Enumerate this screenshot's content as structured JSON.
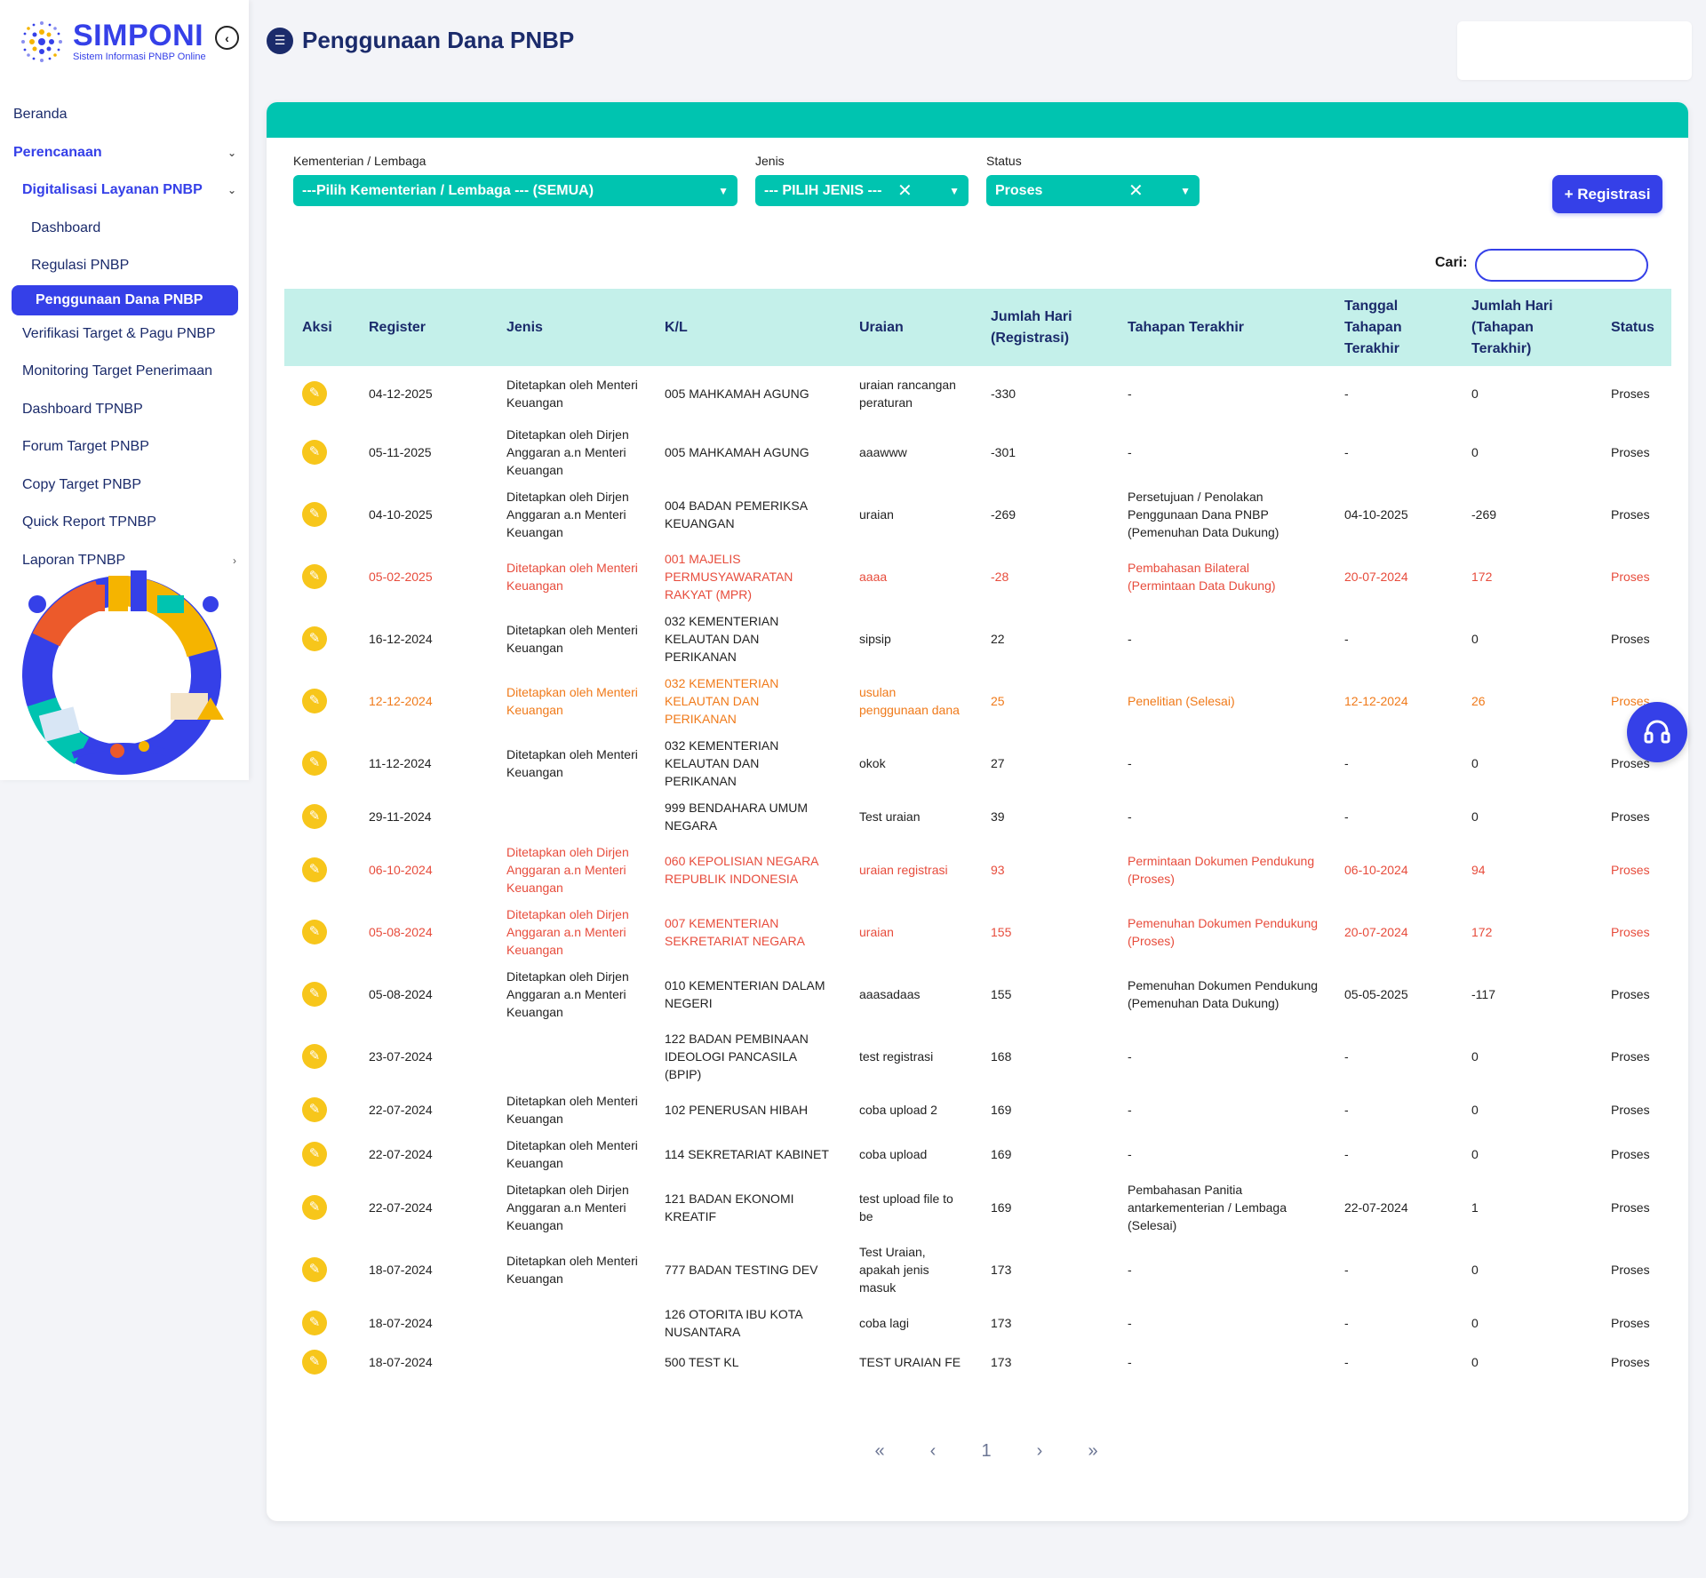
{
  "app": {
    "name": "SIMPONI",
    "subtitle": "Sistem Informasi PNBP Online"
  },
  "sidebar": {
    "items": [
      {
        "label": "Beranda"
      },
      {
        "label": "Perencanaan"
      },
      {
        "label": "Digitalisasi Layanan PNBP"
      },
      {
        "label": "Dashboard"
      },
      {
        "label": "Regulasi PNBP"
      },
      {
        "label": "Penggunaan Dana PNBP"
      },
      {
        "label": "Verifikasi Target & Pagu PNBP"
      },
      {
        "label": "Monitoring Target Penerimaan"
      },
      {
        "label": "Dashboard TPNBP"
      },
      {
        "label": "Forum Target PNBP"
      },
      {
        "label": "Copy Target PNBP"
      },
      {
        "label": "Quick Report TPNBP"
      },
      {
        "label": "Laporan TPNBP"
      }
    ]
  },
  "header": {
    "title": "Penggunaan Dana PNBP"
  },
  "filters": {
    "kl_label": "Kementerian / Lembaga",
    "kl_value": "---Pilih Kementerian / Lembaga --- (SEMUA)",
    "jenis_label": "Jenis",
    "jenis_value": "--- PILIH JENIS ---",
    "status_label": "Status",
    "status_value": "Proses"
  },
  "actions": {
    "register_label": "+ Registrasi",
    "search_label": "Cari:",
    "search_value": ""
  },
  "table": {
    "columns": [
      "Aksi",
      "Register",
      "Jenis",
      "K/L",
      "Uraian",
      "Jumlah Hari (Registrasi)",
      "Tahapan Terakhir",
      "Tanggal Tahapan Terakhir",
      "Jumlah Hari (Tahapan Terakhir)",
      "Status"
    ],
    "rows": [
      {
        "highlight": "",
        "register": "04-12-2025",
        "jenis": "Ditetapkan oleh Menteri Keuangan",
        "kl": "005 MAHKAMAH AGUNG",
        "uraian": "uraian rancangan peraturan",
        "hari_reg": "-330",
        "tahapan": "-",
        "tgl_tahapan": "-",
        "hari_tahapan": "0",
        "status": "Proses"
      },
      {
        "highlight": "",
        "register": "05-11-2025",
        "jenis": "Ditetapkan oleh Dirjen Anggaran a.n Menteri Keuangan",
        "kl": "005 MAHKAMAH AGUNG",
        "uraian": "aaawww",
        "hari_reg": "-301",
        "tahapan": "-",
        "tgl_tahapan": "-",
        "hari_tahapan": "0",
        "status": "Proses"
      },
      {
        "highlight": "",
        "register": "04-10-2025",
        "jenis": "Ditetapkan oleh Dirjen Anggaran a.n Menteri Keuangan",
        "kl": "004 BADAN PEMERIKSA KEUANGAN",
        "uraian": "uraian",
        "hari_reg": "-269",
        "tahapan": "Persetujuan / Penolakan Penggunaan Dana PNBP (Pemenuhan Data Dukung)",
        "tgl_tahapan": "04-10-2025",
        "hari_tahapan": "-269",
        "status": "Proses"
      },
      {
        "highlight": "red",
        "register": "05-02-2025",
        "jenis": "Ditetapkan oleh Menteri Keuangan",
        "kl": "001 MAJELIS PERMUSYAWARATAN RAKYAT (MPR)",
        "uraian": "aaaa",
        "hari_reg": "-28",
        "tahapan": "Pembahasan Bilateral (Permintaan Data Dukung)",
        "tgl_tahapan": "20-07-2024",
        "hari_tahapan": "172",
        "status": "Proses"
      },
      {
        "highlight": "",
        "register": "16-12-2024",
        "jenis": "Ditetapkan oleh Menteri Keuangan",
        "kl": "032 KEMENTERIAN KELAUTAN DAN PERIKANAN",
        "uraian": "sipsip",
        "hari_reg": "22",
        "tahapan": "-",
        "tgl_tahapan": "-",
        "hari_tahapan": "0",
        "status": "Proses"
      },
      {
        "highlight": "orange",
        "register": "12-12-2024",
        "jenis": "Ditetapkan oleh Menteri Keuangan",
        "kl": "032 KEMENTERIAN KELAUTAN DAN PERIKANAN",
        "uraian": "usulan penggunaan dana",
        "hari_reg": "25",
        "tahapan": "Penelitian (Selesai)",
        "tgl_tahapan": "12-12-2024",
        "hari_tahapan": "26",
        "status": "Proses"
      },
      {
        "highlight": "",
        "register": "11-12-2024",
        "jenis": "Ditetapkan oleh Menteri Keuangan",
        "kl": "032 KEMENTERIAN KELAUTAN DAN PERIKANAN",
        "uraian": "okok",
        "hari_reg": "27",
        "tahapan": "-",
        "tgl_tahapan": "-",
        "hari_tahapan": "0",
        "status": "Proses"
      },
      {
        "highlight": "",
        "register": "29-11-2024",
        "jenis": "",
        "kl": "999 BENDAHARA UMUM NEGARA",
        "uraian": "Test uraian",
        "hari_reg": "39",
        "tahapan": "-",
        "tgl_tahapan": "-",
        "hari_tahapan": "0",
        "status": "Proses"
      },
      {
        "highlight": "red",
        "register": "06-10-2024",
        "jenis": "Ditetapkan oleh Dirjen Anggaran a.n Menteri Keuangan",
        "kl": "060 KEPOLISIAN NEGARA REPUBLIK INDONESIA",
        "uraian": "uraian registrasi",
        "hari_reg": "93",
        "tahapan": "Permintaan Dokumen Pendukung (Proses)",
        "tgl_tahapan": "06-10-2024",
        "hari_tahapan": "94",
        "status": "Proses"
      },
      {
        "highlight": "red",
        "register": "05-08-2024",
        "jenis": "Ditetapkan oleh Dirjen Anggaran a.n Menteri Keuangan",
        "kl": "007 KEMENTERIAN SEKRETARIAT NEGARA",
        "uraian": "uraian",
        "hari_reg": "155",
        "tahapan": "Pemenuhan Dokumen Pendukung (Proses)",
        "tgl_tahapan": "20-07-2024",
        "hari_tahapan": "172",
        "status": "Proses"
      },
      {
        "highlight": "",
        "register": "05-08-2024",
        "jenis": "Ditetapkan oleh Dirjen Anggaran a.n Menteri Keuangan",
        "kl": "010 KEMENTERIAN DALAM NEGERI",
        "uraian": "aaasadaas",
        "hari_reg": "155",
        "tahapan": "Pemenuhan Dokumen Pendukung (Pemenuhan Data Dukung)",
        "tgl_tahapan": "05-05-2025",
        "hari_tahapan": "-117",
        "status": "Proses"
      },
      {
        "highlight": "",
        "register": "23-07-2024",
        "jenis": "",
        "kl": "122 BADAN PEMBINAAN IDEOLOGI PANCASILA (BPIP)",
        "uraian": "test registrasi",
        "hari_reg": "168",
        "tahapan": "-",
        "tgl_tahapan": "-",
        "hari_tahapan": "0",
        "status": "Proses"
      },
      {
        "highlight": "",
        "register": "22-07-2024",
        "jenis": "Ditetapkan oleh Menteri Keuangan",
        "kl": "102 PENERUSAN HIBAH",
        "uraian": "coba upload 2",
        "hari_reg": "169",
        "tahapan": "-",
        "tgl_tahapan": "-",
        "hari_tahapan": "0",
        "status": "Proses"
      },
      {
        "highlight": "",
        "register": "22-07-2024",
        "jenis": "Ditetapkan oleh Menteri Keuangan",
        "kl": "114 SEKRETARIAT KABINET",
        "uraian": "coba upload",
        "hari_reg": "169",
        "tahapan": "-",
        "tgl_tahapan": "-",
        "hari_tahapan": "0",
        "status": "Proses"
      },
      {
        "highlight": "",
        "register": "22-07-2024",
        "jenis": "Ditetapkan oleh Dirjen Anggaran a.n Menteri Keuangan",
        "kl": "121 BADAN EKONOMI KREATIF",
        "uraian": "test upload file to be",
        "hari_reg": "169",
        "tahapan": "Pembahasan Panitia antarkementerian / Lembaga (Selesai)",
        "tgl_tahapan": "22-07-2024",
        "hari_tahapan": "1",
        "status": "Proses"
      },
      {
        "highlight": "",
        "register": "18-07-2024",
        "jenis": "Ditetapkan oleh Menteri Keuangan",
        "kl": "777 BADAN TESTING DEV",
        "uraian": "Test Uraian, apakah jenis masuk",
        "hari_reg": "173",
        "tahapan": "-",
        "tgl_tahapan": "-",
        "hari_tahapan": "0",
        "status": "Proses"
      },
      {
        "highlight": "",
        "register": "18-07-2024",
        "jenis": "",
        "kl": "126 OTORITA IBU KOTA NUSANTARA",
        "uraian": "coba lagi",
        "hari_reg": "173",
        "tahapan": "-",
        "tgl_tahapan": "-",
        "hari_tahapan": "0",
        "status": "Proses"
      },
      {
        "highlight": "",
        "register": "18-07-2024",
        "jenis": "",
        "kl": "500 TEST KL",
        "uraian": "TEST URAIAN FE",
        "hari_reg": "173",
        "tahapan": "-",
        "tgl_tahapan": "-",
        "hari_tahapan": "0",
        "status": "Proses"
      }
    ]
  },
  "pagination": {
    "first": "«",
    "prev": "‹",
    "current": "1",
    "next": "›",
    "last": "»"
  },
  "colors": {
    "primary": "#3540e8",
    "teal": "#00c4b0",
    "header_row": "#c4f0ea",
    "edit": "#f7c61b",
    "red_row": "#e74c3c",
    "orange_row": "#f07a1a"
  },
  "icons": {
    "edit": "pencil-icon",
    "help": "headset-icon",
    "collapse": "chevron-left-icon"
  }
}
